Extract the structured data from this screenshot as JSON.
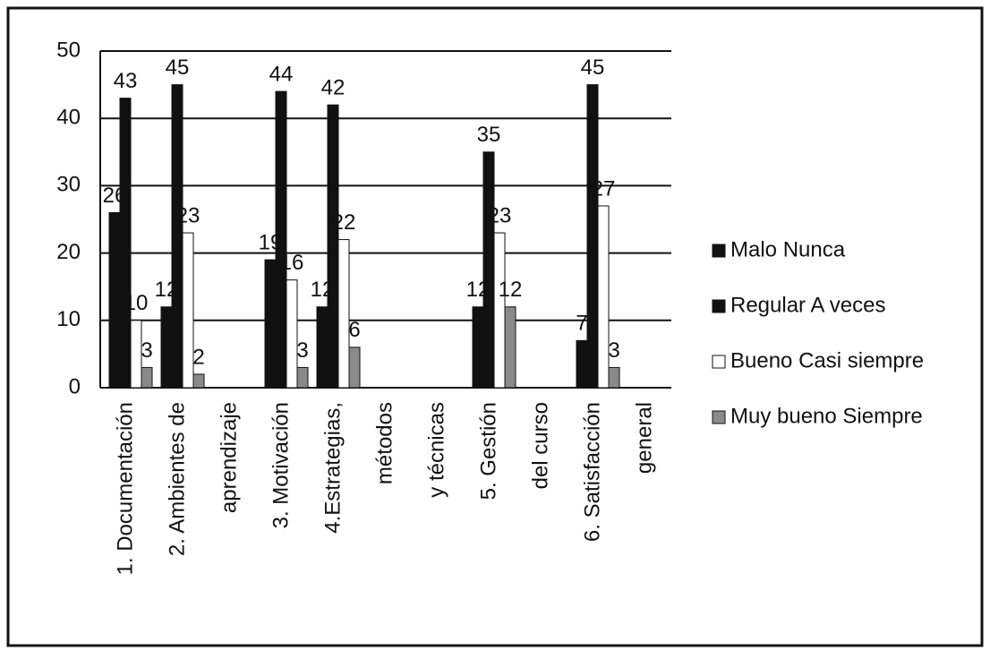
{
  "chart_data": {
    "type": "bar",
    "categories": [
      "1. Documentación",
      "2. Ambientes de",
      "aprendizaje",
      "3. Motivación",
      "4.Estrategias,",
      "métodos",
      "y técnicas",
      "5. Gestión",
      "del curso",
      "6. Satisfacción",
      "general"
    ],
    "series": [
      {
        "name": "Malo   Nunca",
        "color": "#111111",
        "values": [
          26,
          12,
          null,
          19,
          12,
          null,
          null,
          12,
          null,
          7,
          null
        ]
      },
      {
        "name": "Regular  A veces",
        "color": "#111111",
        "values": [
          43,
          45,
          null,
          44,
          42,
          null,
          null,
          35,
          null,
          45,
          null
        ]
      },
      {
        "name": "Bueno Casi siempre",
        "color": "#ffffff",
        "values": [
          10,
          23,
          null,
          16,
          22,
          null,
          null,
          23,
          null,
          27,
          null
        ]
      },
      {
        "name": "Muy bueno Siempre",
        "color": "#8a8a8a",
        "values": [
          3,
          2,
          null,
          3,
          6,
          null,
          null,
          12,
          null,
          3,
          null
        ]
      }
    ],
    "ylim": [
      0,
      50
    ],
    "yticks": [
      0,
      10,
      20,
      30,
      40,
      50
    ],
    "grid": true,
    "legend": "right"
  }
}
